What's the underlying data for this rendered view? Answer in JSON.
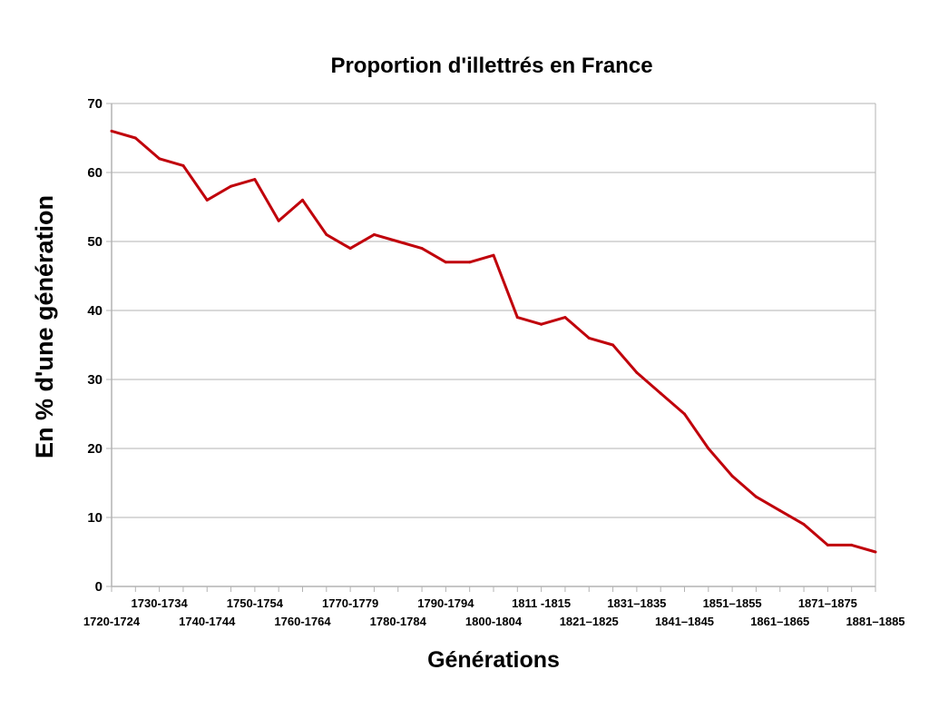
{
  "chart_data": {
    "type": "line",
    "title": "Proportion d'illettrés en France",
    "xlabel": "Générations",
    "ylabel": "En % d'une génération",
    "ylim": [
      0,
      70
    ],
    "yticks": [
      0,
      10,
      20,
      30,
      40,
      50,
      60,
      70
    ],
    "grid": true,
    "line_color": "#c0000b",
    "x_tick_labels": [
      "1720-1724",
      "1730-1734",
      "1740-1744",
      "1750-1754",
      "1760-1764",
      "1770-1779",
      "1780-1784",
      "1790-1794",
      "1800-1804",
      "1811 -1815",
      "1821–1825",
      "1831–1835",
      "1841–1845",
      "1851–1855",
      "1861–1865",
      "1871–1875",
      "1881–1885"
    ],
    "x_tick_label_every": 2,
    "series": [
      {
        "name": "Illettrés",
        "values": [
          66,
          65,
          62,
          61,
          56,
          58,
          59,
          53,
          56,
          51,
          49,
          51,
          50,
          49,
          47,
          47,
          48,
          39,
          38,
          39,
          36,
          35,
          31,
          28,
          25,
          20,
          16,
          13,
          11,
          9,
          6,
          6,
          5
        ]
      }
    ]
  }
}
